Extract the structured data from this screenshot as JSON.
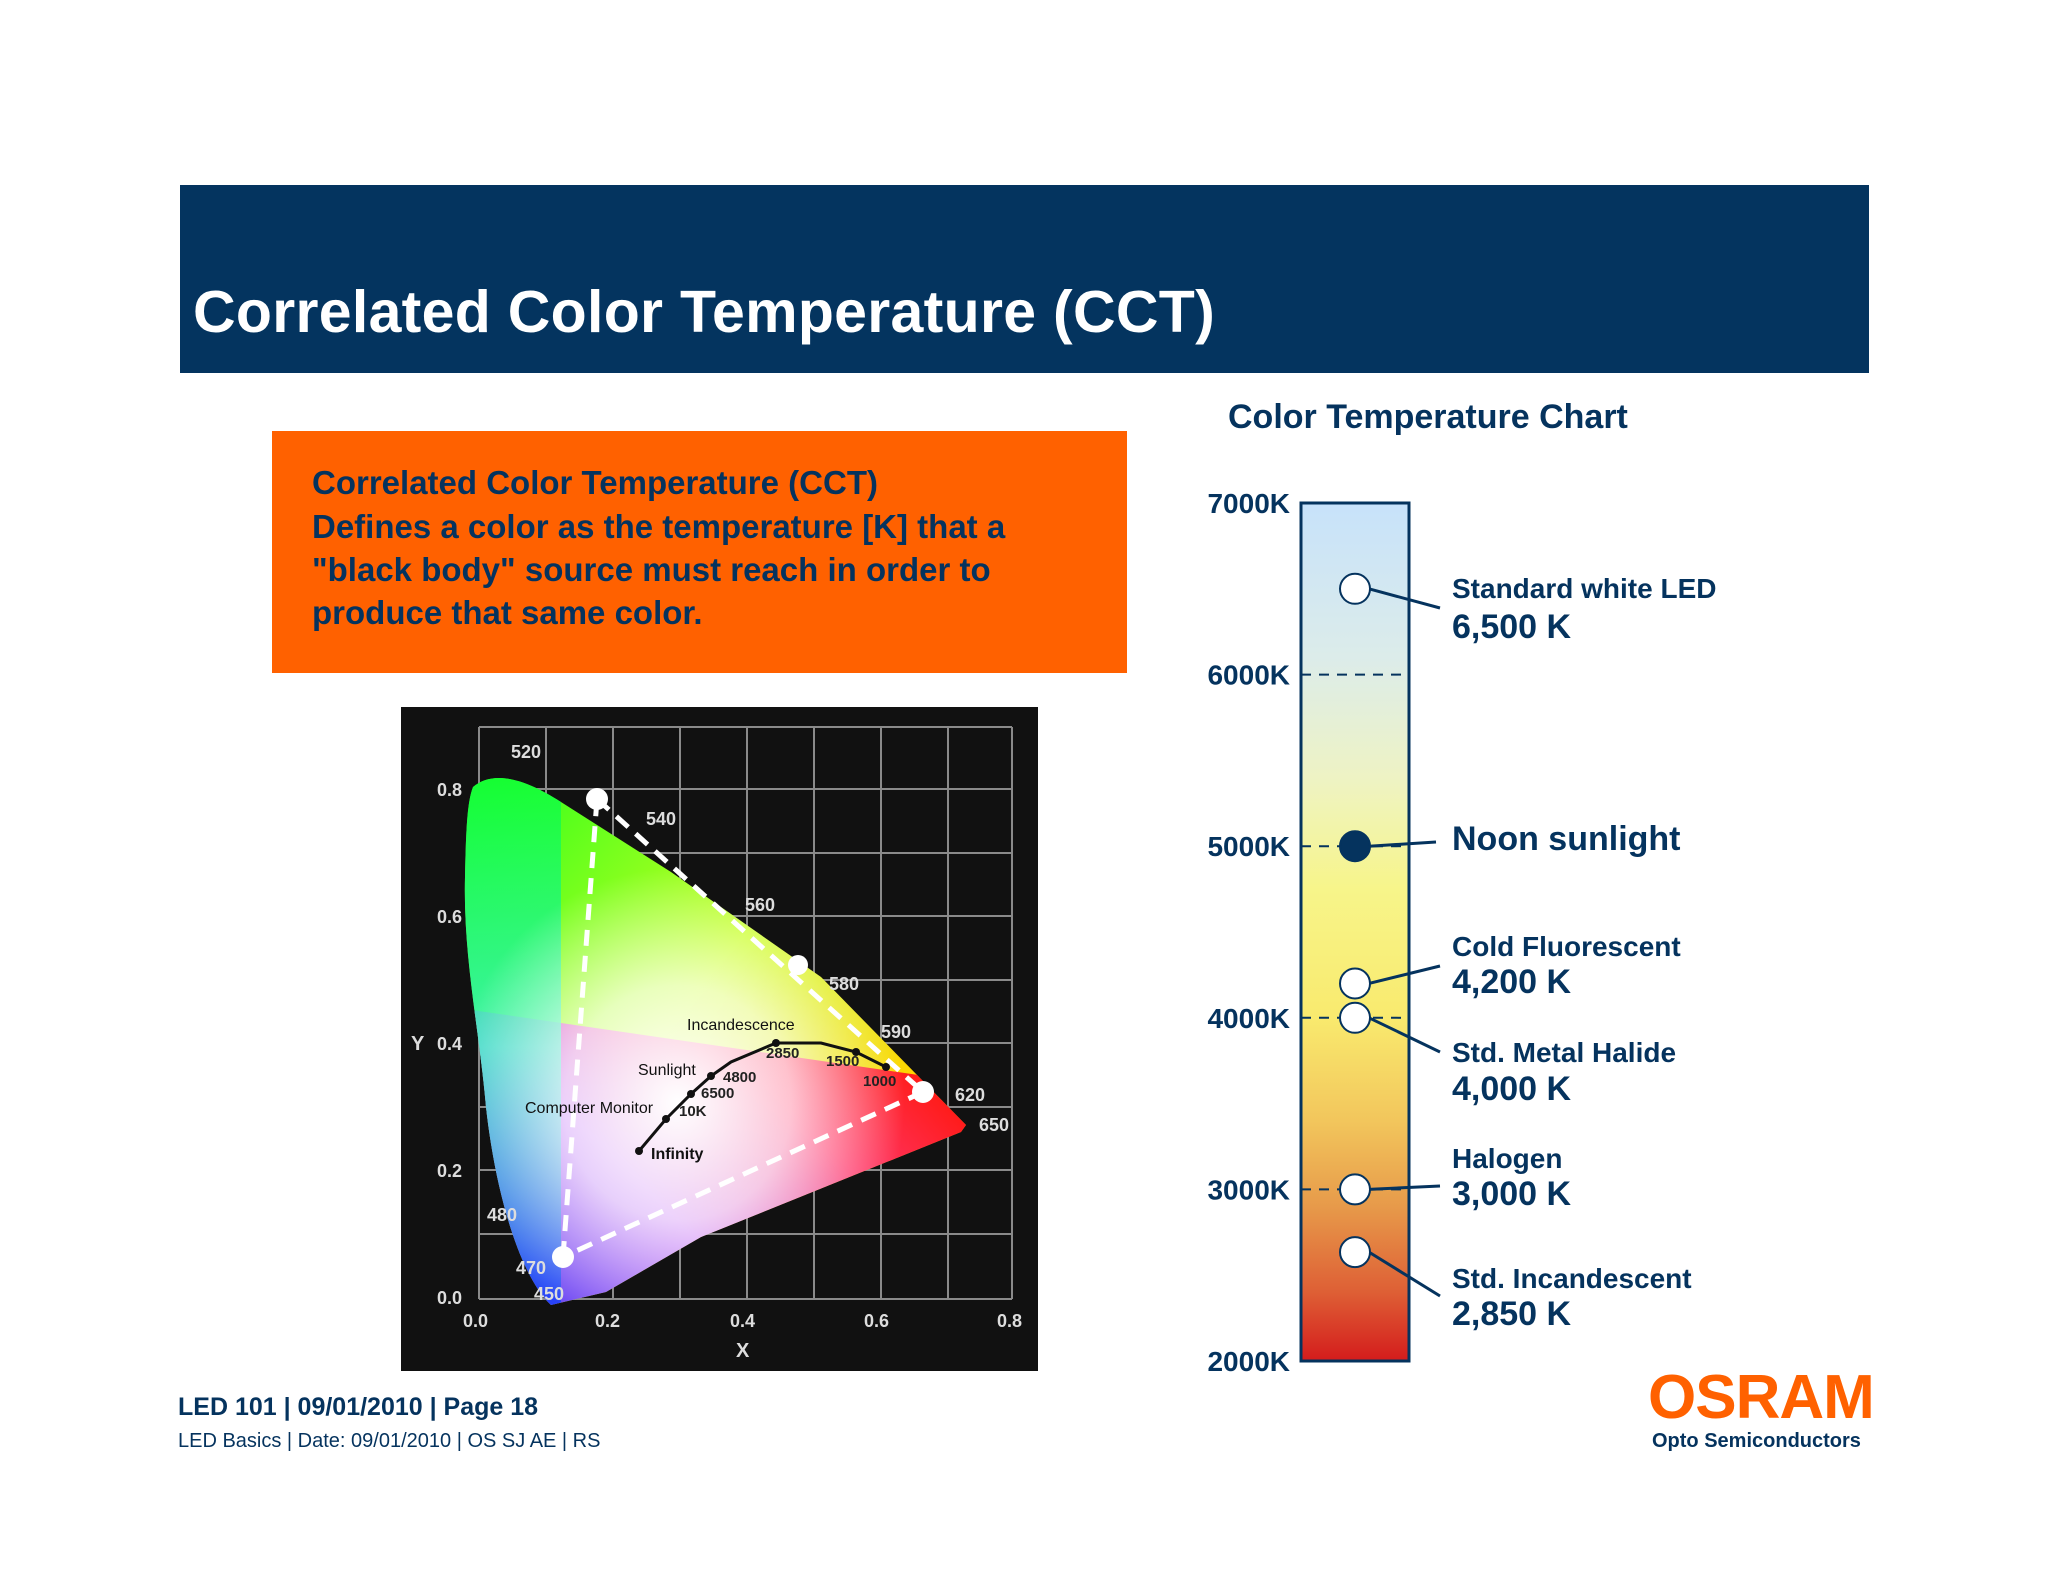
{
  "slide": {
    "title": "Correlated Color Temperature (CCT)"
  },
  "definition": {
    "lines": [
      "Correlated Color Temperature (CCT)",
      "Defines a color as the temperature [K] that a",
      "\"black body\" source must reach in order to",
      "produce that same color."
    ]
  },
  "cie_diagram": {
    "x_axis_label": "X",
    "y_axis_label": "Y",
    "x_ticks": [
      "0.0",
      "0.2",
      "0.4",
      "0.6",
      "0.8"
    ],
    "y_ticks": [
      "0.0",
      "0.2",
      "0.4",
      "0.6",
      "0.8"
    ],
    "wavelength_labels": [
      "520",
      "540",
      "560",
      "580",
      "590",
      "620",
      "650",
      "480",
      "470",
      "450"
    ],
    "curve_labels": {
      "incandescence": "Incandescence",
      "sunlight": "Sunlight",
      "computer_monitor": "Computer Monitor",
      "infinity": "Infinity"
    },
    "curve_values": [
      "2850",
      "1500",
      "1000",
      "4800",
      "6500",
      "10K"
    ],
    "colors": {
      "background": "#111111",
      "grid": "#8a8a8a",
      "triangle": "#ffffff"
    }
  },
  "chart_data": {
    "type": "table",
    "title": "Color Temperature Chart",
    "scale_unit": "K",
    "scale_range": [
      2000,
      7000
    ],
    "scale_ticks": [
      "7000K",
      "6000K",
      "5000K",
      "4000K",
      "3000K",
      "2000K"
    ],
    "sources": [
      {
        "name": "Standard white LED",
        "value_label": "6,500 K",
        "kelvin": 6500
      },
      {
        "name": "Noon sunlight",
        "value_label": "",
        "kelvin": 5000
      },
      {
        "name": "Cold Fluorescent",
        "value_label": "4,200 K",
        "kelvin": 4200
      },
      {
        "name": "Std. Metal Halide",
        "value_label": "4,000 K",
        "kelvin": 4000
      },
      {
        "name": "Halogen",
        "value_label": "3,000 K",
        "kelvin": 3000
      },
      {
        "name": "Std. Incandescent",
        "value_label": "2,850 K",
        "kelvin": 2850
      }
    ]
  },
  "footer": {
    "main": "LED 101  |  09/01/2010 |  Page 18",
    "sub": "LED Basics | Date: 09/01/2010 | OS SJ AE | RS"
  },
  "logo": {
    "word": "OSRAM",
    "sub": "Opto Semiconductors"
  },
  "colors": {
    "title_bar": "#04345f",
    "accent_orange": "#ff6100",
    "text_navy": "#05335e"
  }
}
